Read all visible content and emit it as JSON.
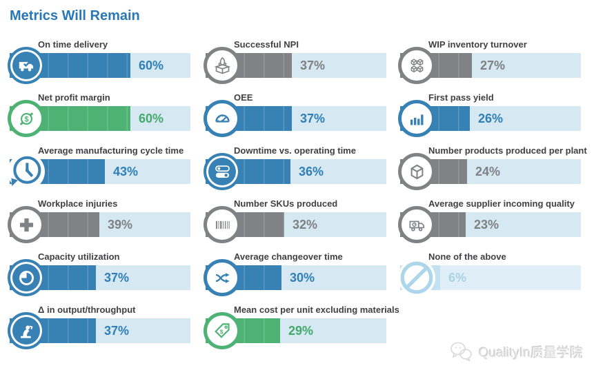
{
  "title": "Metrics Will Remain",
  "colors": {
    "blue": "#3781b5",
    "green": "#4db274",
    "gray": "#808285",
    "lightblue": "#aed6ea",
    "lightblue_fill": "#c3e1f0",
    "track": "#d6e8f2",
    "track_light": "#e0eff7",
    "title_blue": "#2878b5",
    "label_gray": "#414042"
  },
  "metrics": {
    "items": [
      {
        "label": "On time delivery",
        "value": 60,
        "value_label": "60%",
        "color": "blue",
        "icon": "truck-check-icon",
        "style": "filled"
      },
      {
        "label": "Net profit margin",
        "value": 60,
        "value_label": "60%",
        "color": "green",
        "icon": "dollar-coin-icon",
        "style": "outline"
      },
      {
        "label": "Average manufacturing cycle time",
        "value": 43,
        "value_label": "43%",
        "color": "blue",
        "icon": "cycle-time-clock-icon",
        "style": "bare"
      },
      {
        "label": "Workplace injuries",
        "value": 39,
        "value_label": "39%",
        "color": "gray",
        "icon": "medical-cross-icon",
        "style": "outline"
      },
      {
        "label": "Capacity utilization",
        "value": 37,
        "value_label": "37%",
        "color": "blue",
        "icon": "pie-chart-icon",
        "style": "filled"
      },
      {
        "label": "Δ in output/throughput",
        "value": 37,
        "value_label": "37%",
        "color": "blue",
        "icon": "robot-arm-icon",
        "style": "filled"
      },
      {
        "label": "Successful NPI",
        "value": 37,
        "value_label": "37%",
        "color": "gray",
        "icon": "rocket-launch-box-icon",
        "style": "outline"
      },
      {
        "label": "OEE",
        "value": 37,
        "value_label": "37%",
        "color": "blue",
        "icon": "gauge-icon",
        "style": "outline"
      },
      {
        "label": "Downtime vs. operating time",
        "value": 36,
        "value_label": "36%",
        "color": "blue",
        "icon": "toggle-switches-icon",
        "style": "filled"
      },
      {
        "label": "Number SKUs produced",
        "value": 32,
        "value_label": "32%",
        "color": "gray",
        "icon": "barcode-icon",
        "style": "outline"
      },
      {
        "label": "Average changeover time",
        "value": 30,
        "value_label": "30%",
        "color": "blue",
        "icon": "shuffle-arrows-icon",
        "style": "outline"
      },
      {
        "label": "Mean cost per unit excluding materials",
        "value": 29,
        "value_label": "29%",
        "color": "green",
        "icon": "price-tag-icon",
        "style": "outline"
      },
      {
        "label": "WIP inventory turnover",
        "value": 27,
        "value_label": "27%",
        "color": "gray",
        "icon": "stacked-cubes-icon",
        "style": "outline"
      },
      {
        "label": "First pass yield",
        "value": 26,
        "value_label": "26%",
        "color": "blue",
        "icon": "bar-chart-icon",
        "style": "outline"
      },
      {
        "label": "Number products produced per plant",
        "value": 24,
        "value_label": "24%",
        "color": "gray",
        "icon": "cube-icon",
        "style": "outline"
      },
      {
        "label": "Average supplier incoming quality",
        "value": 23,
        "value_label": "23%",
        "color": "gray",
        "icon": "supplier-truck-icon",
        "style": "outline"
      },
      {
        "label": "None of the above",
        "value": 6,
        "value_label": "6%",
        "color": "lightblue",
        "icon": "prohibition-icon",
        "style": "plain"
      }
    ]
  },
  "watermark": {
    "text": "QualityIn质量学院",
    "icon": "wechat-logo-icon"
  },
  "chart_data": {
    "type": "bar",
    "orientation": "horizontal",
    "title": "Metrics Will Remain",
    "categories": [
      "On time delivery",
      "Net profit margin",
      "Average manufacturing cycle time",
      "Workplace injuries",
      "Capacity utilization",
      "Δ in output/throughput",
      "Successful NPI",
      "OEE",
      "Downtime vs. operating time",
      "Number SKUs produced",
      "Average changeover time",
      "Mean cost per unit excluding materials",
      "WIP inventory turnover",
      "First pass yield",
      "Number products produced per plant",
      "Average supplier incoming quality",
      "None of the above"
    ],
    "values": [
      60,
      60,
      43,
      39,
      37,
      37,
      37,
      37,
      36,
      32,
      30,
      29,
      27,
      26,
      24,
      23,
      6
    ],
    "unit": "%",
    "xlim": [
      0,
      100
    ],
    "grid": false,
    "legend": false,
    "layout": "3-column grid, column-major order, value label to the right of each bar fill"
  }
}
